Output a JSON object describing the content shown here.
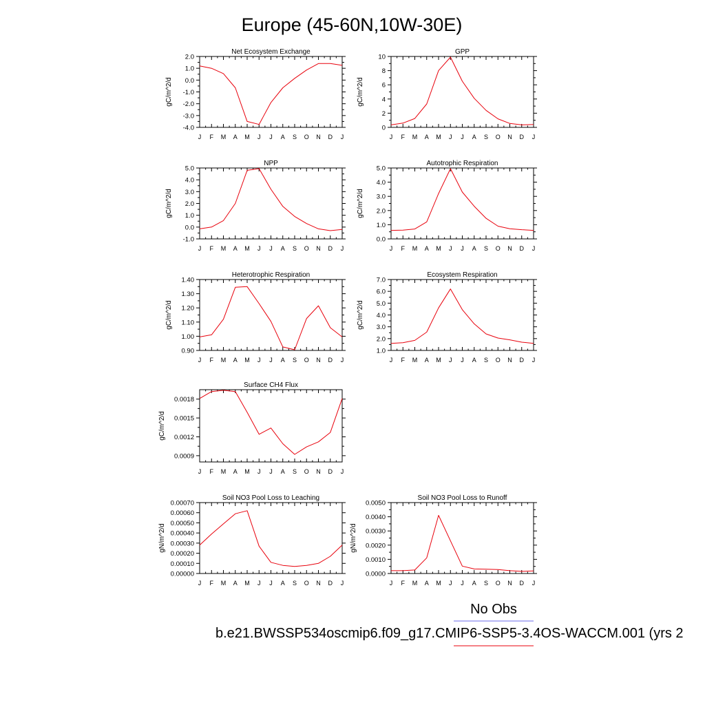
{
  "figure": {
    "title": "Europe (45-60N,10W-30E)",
    "legend_label": "No Obs",
    "case_label": "b.e21.BWSSP534oscmip6.f09_g17.CMIP6-SSP5-3.4OS-WACCM.001 (yrs 2",
    "colors": {
      "model_line": "#e8000b",
      "obs_line": "#6a6ae8",
      "axes": "#000000"
    }
  },
  "chart_data": [
    {
      "type": "line",
      "title": "Net Ecosystem Exchange",
      "ylabel": "gC/m^2/d",
      "categories": [
        "J",
        "F",
        "M",
        "A",
        "M",
        "J",
        "J",
        "A",
        "S",
        "O",
        "N",
        "D",
        "J"
      ],
      "values": [
        1.2,
        1.0,
        0.55,
        -0.65,
        -3.5,
        -3.75,
        -1.9,
        -0.65,
        0.15,
        0.85,
        1.4,
        1.4,
        1.25
      ],
      "ylim": [
        -4.0,
        2.0
      ],
      "major_ticks": [
        -4.0,
        -3.0,
        -2.0,
        -1.0,
        0.0,
        1.0,
        2.0
      ],
      "minor_ticks": [
        -3.5,
        -2.5,
        -1.5,
        -0.5,
        0.5,
        1.5
      ],
      "tick_labels": [
        "-4.0",
        "-3.0",
        "-2.0",
        "-1.0",
        "0.0",
        "1.0",
        "2.0"
      ]
    },
    {
      "type": "line",
      "title": "GPP",
      "ylabel": "gC/m^2/d",
      "categories": [
        "J",
        "F",
        "M",
        "A",
        "M",
        "J",
        "J",
        "A",
        "S",
        "O",
        "N",
        "D",
        "J"
      ],
      "values": [
        0.35,
        0.6,
        1.25,
        3.3,
        8.0,
        9.9,
        6.5,
        4.1,
        2.4,
        1.2,
        0.55,
        0.35,
        0.4
      ],
      "ylim": [
        0,
        10
      ],
      "major_ticks": [
        0,
        2,
        4,
        6,
        8,
        10
      ],
      "minor_ticks": [
        1,
        3,
        5,
        7,
        9
      ],
      "tick_labels": [
        "0",
        "2",
        "4",
        "6",
        "8",
        "10"
      ]
    },
    {
      "type": "line",
      "title": "NPP",
      "ylabel": "gC/m^2/d",
      "categories": [
        "J",
        "F",
        "M",
        "A",
        "M",
        "J",
        "J",
        "A",
        "S",
        "O",
        "N",
        "D",
        "J"
      ],
      "values": [
        -0.15,
        0.0,
        0.55,
        2.0,
        4.8,
        4.95,
        3.2,
        1.75,
        0.9,
        0.3,
        -0.15,
        -0.3,
        -0.2
      ],
      "ylim": [
        -1.0,
        5.0
      ],
      "major_ticks": [
        -1.0,
        0.0,
        1.0,
        2.0,
        3.0,
        4.0,
        5.0
      ],
      "minor_ticks": [
        -0.5,
        0.5,
        1.5,
        2.5,
        3.5,
        4.5
      ],
      "tick_labels": [
        "-1.0",
        "0.0",
        "1.0",
        "2.0",
        "3.0",
        "4.0",
        "5.0"
      ]
    },
    {
      "type": "line",
      "title": "Autotrophic Respiration",
      "ylabel": "gC/m^2/d",
      "categories": [
        "J",
        "F",
        "M",
        "A",
        "M",
        "J",
        "J",
        "A",
        "S",
        "O",
        "N",
        "D",
        "J"
      ],
      "values": [
        0.6,
        0.62,
        0.7,
        1.2,
        3.2,
        4.95,
        3.3,
        2.3,
        1.45,
        0.9,
        0.72,
        0.65,
        0.6
      ],
      "ylim": [
        0,
        5.0
      ],
      "major_ticks": [
        0,
        1.0,
        2.0,
        3.0,
        4.0,
        5.0
      ],
      "minor_ticks": [
        0.5,
        1.5,
        2.5,
        3.5,
        4.5
      ],
      "tick_labels": [
        "0.0",
        "1.0",
        "2.0",
        "3.0",
        "4.0",
        "5.0"
      ]
    },
    {
      "type": "line",
      "title": "Heterotrophic Respiration",
      "ylabel": "gC/m^2/d",
      "categories": [
        "J",
        "F",
        "M",
        "A",
        "M",
        "J",
        "J",
        "A",
        "S",
        "O",
        "N",
        "D",
        "J"
      ],
      "values": [
        0.995,
        1.01,
        1.12,
        1.345,
        1.35,
        1.23,
        1.105,
        0.925,
        0.905,
        1.125,
        1.215,
        1.06,
        0.995
      ],
      "ylim": [
        0.9,
        1.4
      ],
      "major_ticks": [
        0.9,
        1.0,
        1.1,
        1.2,
        1.3,
        1.4
      ],
      "minor_ticks": [
        0.95,
        1.05,
        1.15,
        1.25,
        1.35
      ],
      "tick_labels": [
        "0.90",
        "1.00",
        "1.10",
        "1.20",
        "1.30",
        "1.40"
      ]
    },
    {
      "type": "line",
      "title": "Ecosystem Respiration",
      "ylabel": "gC/m^2/d",
      "categories": [
        "J",
        "F",
        "M",
        "A",
        "M",
        "J",
        "J",
        "A",
        "S",
        "O",
        "N",
        "D",
        "J"
      ],
      "values": [
        1.6,
        1.65,
        1.85,
        2.55,
        4.6,
        6.2,
        4.45,
        3.25,
        2.4,
        2.05,
        1.9,
        1.7,
        1.6
      ],
      "ylim": [
        1.0,
        7.0
      ],
      "major_ticks": [
        1.0,
        2.0,
        3.0,
        4.0,
        5.0,
        6.0,
        7.0
      ],
      "minor_ticks": [
        1.5,
        2.5,
        3.5,
        4.5,
        5.5,
        6.5
      ],
      "tick_labels": [
        "1.0",
        "2.0",
        "3.0",
        "4.0",
        "5.0",
        "6.0",
        "7.0"
      ]
    },
    {
      "type": "line",
      "title": "Surface CH4 Flux",
      "ylabel": "gC/m^2/d",
      "categories": [
        "J",
        "F",
        "M",
        "A",
        "M",
        "J",
        "J",
        "A",
        "S",
        "O",
        "N",
        "D",
        "J"
      ],
      "values": [
        0.00181,
        0.00192,
        0.00194,
        0.00192,
        0.00159,
        0.00124,
        0.00134,
        0.00109,
        0.00092,
        0.00104,
        0.00112,
        0.00127,
        0.00181
      ],
      "ylim": [
        0.0008,
        0.00195
      ],
      "major_ticks": [
        0.0009,
        0.0012,
        0.0015,
        0.0018
      ],
      "minor_ticks": [
        0.00105,
        0.00135,
        0.00165
      ],
      "tick_labels": [
        "0.0009",
        "0.0012",
        "0.0015",
        "0.0018"
      ]
    },
    {
      "type": "line",
      "title": "Soil NO3 Pool Loss to Leaching",
      "ylabel": "gN/m^2/d",
      "categories": [
        "J",
        "F",
        "M",
        "A",
        "M",
        "J",
        "J",
        "A",
        "S",
        "O",
        "N",
        "D",
        "J"
      ],
      "values": [
        0.00028,
        0.00039,
        0.00049,
        0.00059,
        0.00062,
        0.00027,
        0.00011,
        8e-05,
        7e-05,
        8e-05,
        0.0001,
        0.00017,
        0.00028
      ],
      "ylim": [
        0,
        0.0007
      ],
      "major_ticks": [
        0,
        0.0001,
        0.0002,
        0.0003,
        0.0004,
        0.0005,
        0.0006,
        0.0007
      ],
      "minor_ticks": [],
      "tick_labels": [
        "0.00000",
        "0.00010",
        "0.00020",
        "0.00030",
        "0.00040",
        "0.00050",
        "0.00060",
        "0.00070"
      ]
    },
    {
      "type": "line",
      "title": "Soil NO3 Pool Loss to Runoff",
      "ylabel": "gN/m^2/d",
      "categories": [
        "J",
        "F",
        "M",
        "A",
        "M",
        "J",
        "J",
        "A",
        "S",
        "O",
        "N",
        "D",
        "J"
      ],
      "values": [
        0.0002,
        0.0002,
        0.00025,
        0.0011,
        0.0041,
        0.0023,
        0.00052,
        0.00032,
        0.0003,
        0.00028,
        0.0002,
        0.00015,
        0.00018
      ],
      "ylim": [
        0,
        0.005
      ],
      "major_ticks": [
        0,
        0.001,
        0.002,
        0.003,
        0.004,
        0.005
      ],
      "minor_ticks": [
        0.0005,
        0.0015,
        0.0025,
        0.0035,
        0.0045
      ],
      "tick_labels": [
        "0.0000",
        "0.0010",
        "0.0020",
        "0.0030",
        "0.0040",
        "0.0050"
      ]
    }
  ]
}
